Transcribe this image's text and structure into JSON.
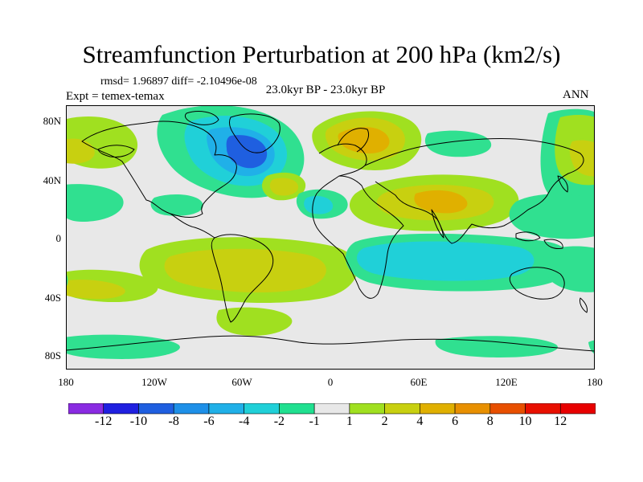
{
  "header": {
    "title": "Streamfunction Perturbation at 200 hPa (km2/s)",
    "stats": "rmsd= 1.96897 diff= -2.10496e-08",
    "experiment": "Expt = temex-temax",
    "period": "23.0kyr BP - 23.0kyr BP",
    "season": "ANN"
  },
  "axes": {
    "lat_labels": [
      "80N",
      "40N",
      "0",
      "40S",
      "80S"
    ],
    "lon_labels": [
      "180",
      "120W",
      "60W",
      "0",
      "60E",
      "120E",
      "180"
    ]
  },
  "colorbar": {
    "labels": [
      "-12",
      "-10",
      "-8",
      "-6",
      "-4",
      "-2",
      "-1",
      "1",
      "2",
      "4",
      "6",
      "8",
      "10",
      "12"
    ],
    "colors": [
      "#8a2be2",
      "#2020e0",
      "#1f5fe0",
      "#1e90e8",
      "#20b0e8",
      "#20d0d8",
      "#20e090",
      "#e8e8e8",
      "#a0e020",
      "#c8d010",
      "#e0b000",
      "#e89000",
      "#e85000",
      "#e81000"
    ]
  },
  "palette": {
    "neutral": "#e8e8e8",
    "light_green": "#30e090",
    "cyan": "#20d0d8",
    "light_blue": "#20b0e8",
    "blue": "#1f5fe0",
    "lime": "#a0e020",
    "olive": "#c8d010",
    "orange": "#e0b000",
    "dark_orange": "#e89000"
  }
}
